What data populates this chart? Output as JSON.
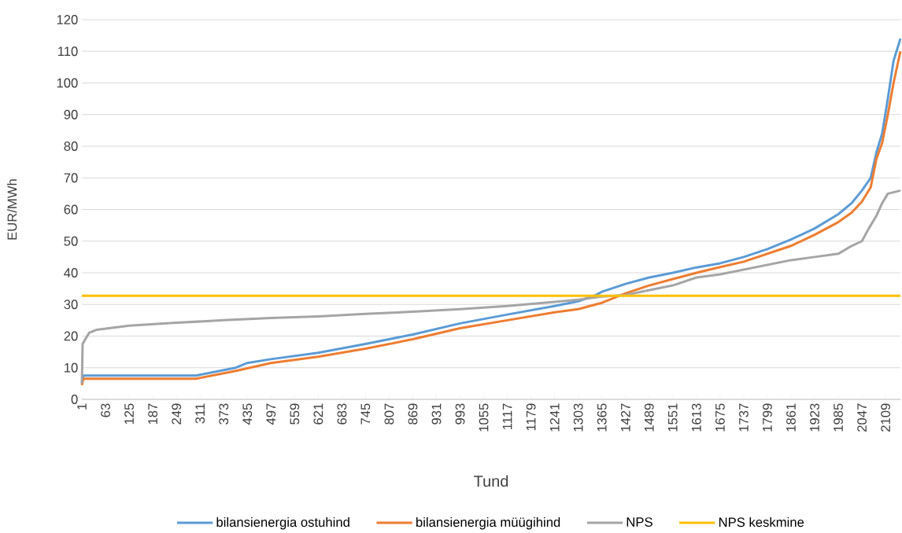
{
  "chart_data": {
    "type": "line",
    "xlabel": "Tund",
    "ylabel": "EUR/MWh",
    "xlim": [
      1,
      2148
    ],
    "ylim": [
      0,
      120
    ],
    "xticks": [
      1,
      63,
      125,
      187,
      249,
      311,
      373,
      435,
      497,
      559,
      621,
      683,
      745,
      807,
      869,
      931,
      993,
      1055,
      1117,
      1179,
      1241,
      1303,
      1365,
      1427,
      1489,
      1551,
      1613,
      1675,
      1737,
      1799,
      1861,
      1923,
      1985,
      2047,
      2109
    ],
    "yticks": [
      0,
      10,
      20,
      30,
      40,
      50,
      60,
      70,
      80,
      90,
      100,
      110,
      120
    ],
    "grid": "y",
    "legend": "bottom",
    "marker": "none",
    "line_style": "solid",
    "series": [
      {
        "name": "bilansienergia ostuhind",
        "color": "#5b9bd5",
        "x": [
          1,
          5,
          300,
          405,
          435,
          497,
          621,
          745,
          869,
          993,
          1117,
          1241,
          1303,
          1350,
          1365,
          1427,
          1489,
          1551,
          1613,
          1675,
          1737,
          1799,
          1861,
          1923,
          1985,
          2020,
          2047,
          2070,
          2085,
          2100,
          2115,
          2130,
          2148
        ],
        "values": [
          5,
          7.5,
          7.5,
          10,
          11.5,
          12.7,
          14.7,
          17.5,
          20.5,
          24,
          26.8,
          29.5,
          31,
          33,
          34,
          36.5,
          38.5,
          40,
          41.7,
          43,
          45,
          47.5,
          50.5,
          54,
          58.5,
          62,
          66,
          70,
          78,
          84,
          95,
          107,
          114
        ]
      },
      {
        "name": "bilansienergia müügihind",
        "color": "#ed7d31",
        "x": [
          1,
          5,
          300,
          405,
          497,
          621,
          745,
          869,
          993,
          1117,
          1241,
          1303,
          1365,
          1427,
          1489,
          1551,
          1613,
          1675,
          1737,
          1799,
          1861,
          1923,
          1985,
          2020,
          2047,
          2070,
          2085,
          2100,
          2115,
          2130,
          2148
        ],
        "values": [
          4.5,
          6.5,
          6.5,
          9,
          11.5,
          13.5,
          16,
          19,
          22.5,
          25,
          27.5,
          28.5,
          30.5,
          33.5,
          36,
          38,
          40,
          41.8,
          43.5,
          46,
          48.5,
          52,
          56,
          59,
          62.5,
          67,
          76,
          81,
          90,
          100,
          110
        ]
      },
      {
        "name": "NPS",
        "color": "#a5a5a5",
        "x": [
          1,
          3,
          10,
          20,
          40,
          125,
          249,
          373,
          497,
          621,
          745,
          869,
          993,
          1117,
          1241,
          1303,
          1365,
          1427,
          1489,
          1551,
          1613,
          1675,
          1737,
          1799,
          1861,
          1923,
          1985,
          2020,
          2047,
          2065,
          2085,
          2100,
          2115,
          2148
        ],
        "values": [
          5,
          17.5,
          19,
          21,
          22,
          23.3,
          24.2,
          25,
          25.7,
          26.2,
          27,
          27.7,
          28.5,
          29.5,
          30.8,
          31.5,
          32.5,
          33,
          34.5,
          36,
          38.5,
          39.5,
          41,
          42.5,
          44,
          45,
          46,
          48.5,
          50,
          54,
          58,
          62,
          65,
          66
        ]
      },
      {
        "name": "NPS keskmine",
        "color": "#ffc000",
        "x": [
          1,
          2148
        ],
        "values": [
          32.7,
          32.7
        ]
      }
    ]
  }
}
